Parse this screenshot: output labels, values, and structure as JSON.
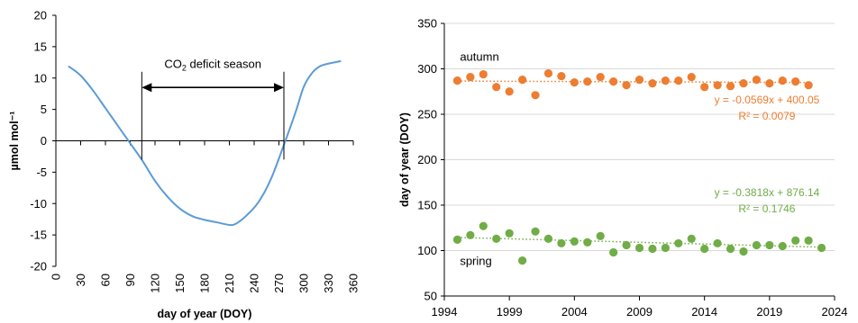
{
  "colors": {
    "curve": "#5B9BD5",
    "autumn": "#ED7D31",
    "spring": "#70AD47",
    "axis": "#000000",
    "grid": "#D9D9D9"
  },
  "chart_data": [
    {
      "type": "line",
      "xlabel": "day of year (DOY)",
      "ylabel": "µmol mol⁻¹",
      "xlim": [
        0,
        360
      ],
      "ylim": [
        -20,
        20
      ],
      "x_ticks": [
        0,
        30,
        60,
        90,
        120,
        150,
        180,
        210,
        240,
        270,
        300,
        330,
        360
      ],
      "y_ticks": [
        -20,
        -15,
        -10,
        -5,
        0,
        5,
        10,
        15,
        20
      ],
      "x_tick_labels": [
        "0",
        "30",
        "60",
        "90",
        "120",
        "150",
        "180",
        "210",
        "240",
        "270",
        "300",
        "330",
        "360"
      ],
      "y_tick_labels": [
        "-20",
        "-15",
        "-10",
        "-5",
        "0",
        "5",
        "10",
        "15",
        "20"
      ],
      "grid": false,
      "series": [
        {
          "x": [
            15,
            30,
            45,
            60,
            75,
            90,
            104,
            120,
            135,
            150,
            165,
            180,
            195,
            210,
            218,
            230,
            245,
            260,
            275,
            290,
            300,
            310,
            320,
            330,
            345
          ],
          "values": [
            11.9,
            10.4,
            8.0,
            5.2,
            2.4,
            -0.4,
            -3.0,
            -6.4,
            -8.9,
            -10.8,
            -12.0,
            -12.6,
            -13.0,
            -13.4,
            -13.2,
            -12.0,
            -9.8,
            -6.2,
            -1.0,
            4.5,
            8.6,
            10.8,
            11.9,
            12.3,
            12.7
          ]
        }
      ],
      "annotations": {
        "deficit_label": "CO₂ deficit season",
        "deficit_start": 104,
        "deficit_end": 276
      }
    },
    {
      "type": "scatter",
      "xlabel": "",
      "ylabel": "day of year (DOY)",
      "xlim": [
        1994,
        2024
      ],
      "ylim": [
        50,
        350
      ],
      "x_ticks": [
        1994,
        1999,
        2004,
        2009,
        2014,
        2019,
        2024
      ],
      "y_ticks": [
        50,
        100,
        150,
        200,
        250,
        300,
        350
      ],
      "x_tick_labels": [
        "1994",
        "1999",
        "2004",
        "2009",
        "2014",
        "2019",
        "2024"
      ],
      "y_tick_labels": [
        "50",
        "100",
        "150",
        "200",
        "250",
        "300",
        "350"
      ],
      "grid": true,
      "series": [
        {
          "name": "autumn",
          "x": [
            1995,
            1996,
            1997,
            1998,
            1999,
            2000,
            2001,
            2002,
            2003,
            2004,
            2005,
            2006,
            2007,
            2008,
            2009,
            2010,
            2011,
            2012,
            2013,
            2014,
            2015,
            2016,
            2017,
            2018,
            2019,
            2020,
            2021,
            2022
          ],
          "values": [
            287,
            291,
            294,
            280,
            275,
            288,
            271,
            295,
            292,
            285,
            286,
            291,
            286,
            282,
            288,
            284,
            287,
            287,
            291,
            280,
            282,
            281,
            284,
            288,
            284,
            287,
            286,
            282
          ],
          "trend": {
            "slope": -0.0569,
            "intercept": 400.05,
            "equation": "y = -0.0569x + 400.05",
            "r2": "R² = 0.0079"
          }
        },
        {
          "name": "spring",
          "x": [
            1995,
            1996,
            1997,
            1998,
            1999,
            2000,
            2001,
            2002,
            2003,
            2004,
            2005,
            2006,
            2007,
            2008,
            2009,
            2010,
            2011,
            2012,
            2013,
            2014,
            2015,
            2016,
            2017,
            2018,
            2019,
            2020,
            2021,
            2022,
            2023
          ],
          "values": [
            112,
            117,
            127,
            113,
            119,
            89,
            121,
            113,
            108,
            110,
            109,
            116,
            98,
            106,
            103,
            102,
            103,
            108,
            113,
            102,
            108,
            102,
            99,
            106,
            106,
            105,
            111,
            111,
            103
          ],
          "trend": {
            "slope": -0.3818,
            "intercept": 876.14,
            "equation": "y = -0.3818x + 876.14",
            "r2": "R² = 0.1746"
          }
        }
      ]
    }
  ]
}
